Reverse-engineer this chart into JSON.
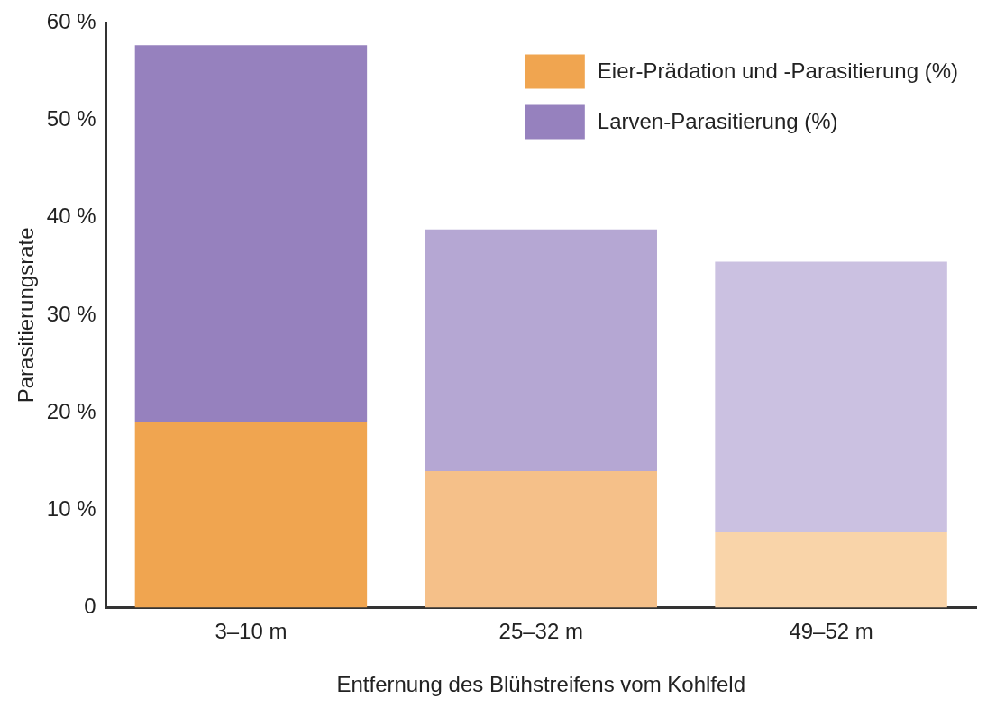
{
  "chart_data": {
    "type": "bar",
    "stacked": true,
    "xlabel": "Entfernung des Blühstreifens vom Kohlfeld",
    "ylabel": "Parasitierungsrate",
    "categories": [
      "3–10 m",
      "25–32 m",
      "49–52 m"
    ],
    "series": [
      {
        "name": "Eier-Prädation und -Parasitierung (%)",
        "color": "#f0a550",
        "colors": [
          "#f0a550",
          "#f5c089",
          "#f9d4a9"
        ],
        "values": [
          19,
          14,
          7.7
        ]
      },
      {
        "name": "Larven-Parasitierung (%)",
        "color": "#9681be",
        "colors": [
          "#9681be",
          "#b5a7d3",
          "#cbc1e1"
        ],
        "values": [
          38.7,
          24.8,
          27.8
        ]
      }
    ],
    "ylim": [
      0,
      60
    ],
    "yticks": [
      {
        "value": 0,
        "label": "0"
      },
      {
        "value": 10,
        "label": "10 %"
      },
      {
        "value": 20,
        "label": "20 %"
      },
      {
        "value": 30,
        "label": "30 %"
      },
      {
        "value": 40,
        "label": "40 %"
      },
      {
        "value": 50,
        "label": "50 %"
      },
      {
        "value": 60,
        "label": "60 %"
      }
    ],
    "grid": false,
    "legend": "top right"
  }
}
